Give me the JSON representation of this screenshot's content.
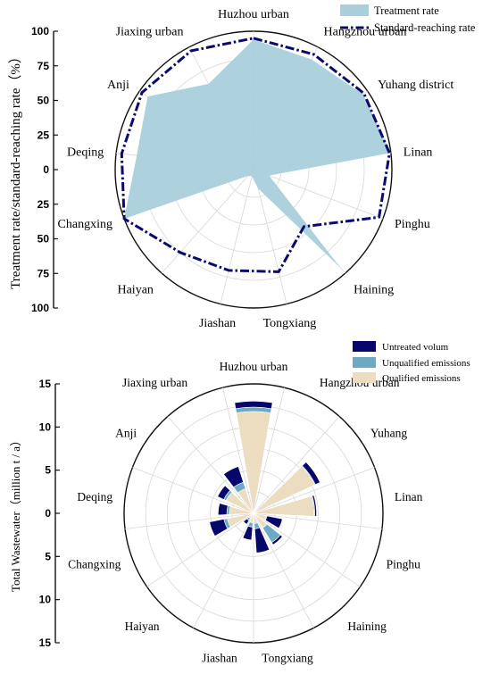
{
  "charts": [
    {
      "chart_data": {
        "type": "radar",
        "ylabel": "Treatment rate/standard-reaching rate（%）",
        "ylim": [
          0,
          100
        ],
        "yticks": [
          "100",
          "75",
          "50",
          "25",
          "0",
          "25",
          "50",
          "75",
          "100"
        ],
        "categories": [
          "Huzhou urban",
          "Hangzhou urban",
          "Yuhang district",
          "Linan",
          "Pinghu",
          "Haining",
          "Tongxiang",
          "Jiashan",
          "Haiyan",
          "Changxing",
          "Deqing",
          "Anji",
          "Jiaxing urban"
        ],
        "series": [
          {
            "name": "Treatment rate",
            "type": "area",
            "values": [
              94,
              90,
              96,
              100,
              12,
              95,
              14,
              5,
              6,
              100,
              85,
              93,
              70
            ]
          },
          {
            "name": "Standard-reaching rate",
            "type": "line",
            "values": [
              95,
              94,
              97,
              99,
              97,
              55,
              76,
              75,
              80,
              100,
              96,
              98,
              97
            ]
          }
        ],
        "legend": "top-right",
        "grid": true
      }
    },
    {
      "chart_data": {
        "type": "polar-stacked-bar",
        "ylabel": "Total Wastewater（million t / a）",
        "ylim": [
          0,
          15
        ],
        "yticks": [
          "15",
          "10",
          "5",
          "0",
          "5",
          "10",
          "15"
        ],
        "categories": [
          "Huzhou urban",
          "Hangzhou urban",
          "Yuhang",
          "Linan",
          "Pinghu",
          "Haining",
          "Tongxiang",
          "Jiashan",
          "Haiyan",
          "Changxing",
          "Deqing",
          "Anji",
          "Jiaxing urban"
        ],
        "series": [
          {
            "name": "Qualified emissions",
            "values": [
              11.8,
              0.4,
              7.8,
              7.0,
              1.5,
              2.0,
              1.2,
              1.1,
              0.7,
              3.1,
              2.8,
              3.5,
              3.0
            ]
          },
          {
            "name": "Unqualified emissions",
            "values": [
              0.5,
              0.05,
              0.1,
              0.1,
              0.1,
              2.0,
              0.6,
              0.5,
              0.3,
              0.4,
              0.3,
              0.3,
              0.8
            ]
          },
          {
            "name": "Untreated volum",
            "values": [
              0.7,
              0.05,
              0.6,
              0.2,
              1.8,
              0.3,
              2.8,
              1.5,
              0.5,
              1.7,
              1.0,
              0.8,
              1.9
            ]
          }
        ],
        "legend": "top-right",
        "grid": true
      }
    }
  ],
  "colors": {
    "treatment_fill": "#a9cfdb",
    "standard_line": "#0a0a6e",
    "untreated": "#07076b",
    "unqualified": "#6ea9c3",
    "qualified": "#ecdcc0",
    "grid": "#d8d8d8"
  }
}
